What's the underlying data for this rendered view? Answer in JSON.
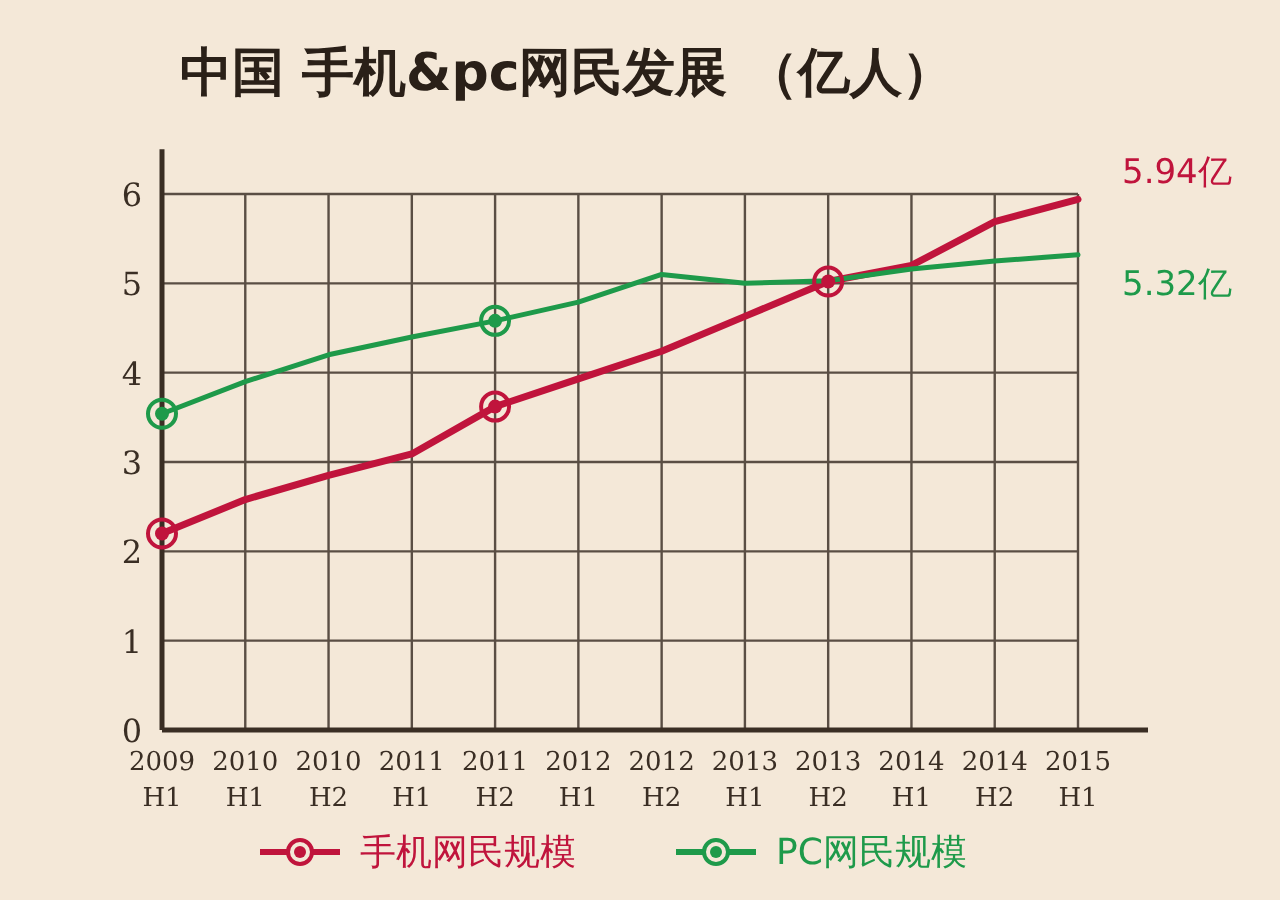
{
  "chart_data": {
    "type": "line",
    "title": "中国 手机&pc网民发展 （亿人）",
    "categories": [
      "2009 H1",
      "2010 H1",
      "2010 H2",
      "2011 H1",
      "2011 H2",
      "2012 H1",
      "2012 H2",
      "2013 H1",
      "2013 H2",
      "2014 H1",
      "2014 H2",
      "2015 H1"
    ],
    "series": [
      {
        "name": "手机网民规模",
        "color": "#c0143c",
        "values": [
          2.2,
          2.58,
          2.85,
          3.09,
          3.62,
          3.93,
          4.24,
          4.63,
          5.02,
          5.2,
          5.69,
          5.94
        ],
        "value_labels": [
          null,
          null,
          null,
          null,
          null,
          null,
          null,
          null,
          null,
          null,
          null,
          "5.94亿"
        ]
      },
      {
        "name": "PC网民规模",
        "color": "#1e9a4a",
        "values": [
          3.54,
          3.9,
          4.2,
          4.4,
          4.58,
          4.79,
          5.1,
          5.0,
          5.03,
          5.16,
          5.25,
          5.32
        ],
        "value_labels": [
          null,
          null,
          null,
          null,
          null,
          null,
          null,
          null,
          null,
          null,
          null,
          "5.32亿"
        ]
      },
      {
        "type": "scatter",
        "marker": "circle",
        "color": "#c0143c",
        "x": [
          "2009 H1",
          "2011 H2",
          "2013 H2"
        ],
        "values": [
          2.2,
          3.62,
          5.02
        ]
      },
      {
        "type": "scatter",
        "marker": "circle",
        "color": "#1e9a4a",
        "x": [
          "2009 H1",
          "2011 H2"
        ],
        "values": [
          3.54,
          4.58
        ]
      }
    ],
    "ylim": [
      0,
      6.5
    ],
    "yticks": [
      0,
      1,
      2,
      3,
      4,
      5,
      6
    ],
    "grid": true,
    "legend": "bottom"
  }
}
